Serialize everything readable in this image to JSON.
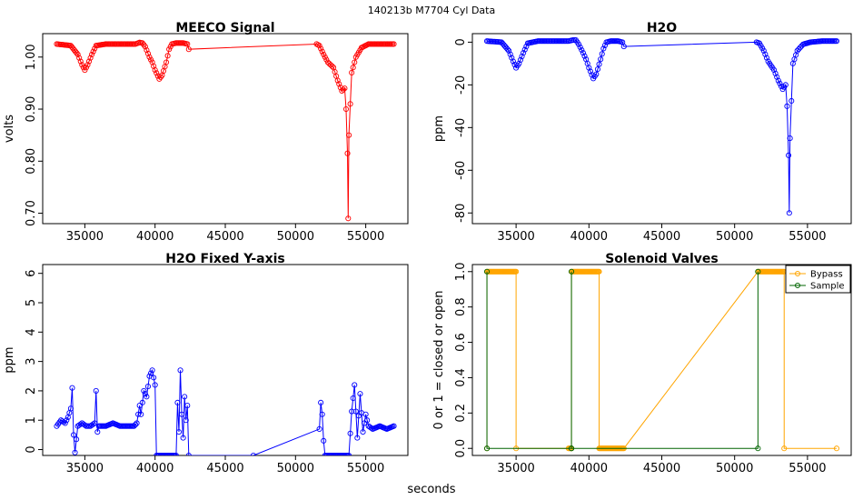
{
  "suptitle": "140213b    M7704   Cyl Data",
  "common_xlabel": "seconds",
  "colors": {
    "meeco": "#ff0000",
    "h2o": "#0000ff",
    "bypass": "#ffa500",
    "sample": "#006400"
  },
  "chart_data": [
    {
      "id": "meeco",
      "type": "line",
      "title": "MEECO Signal",
      "xlabel": "",
      "ylabel": "volts",
      "xlim": [
        32000,
        58000
      ],
      "ylim": [
        0.68,
        1.045
      ],
      "xticks": [
        35000,
        40000,
        45000,
        50000,
        55000
      ],
      "xtick_labels": [
        "35000",
        "40000",
        "45000",
        "50000",
        "55000"
      ],
      "yticks": [
        0.7,
        0.8,
        0.9,
        1.0
      ],
      "ytick_labels": [
        "0.70",
        "0.80",
        "0.90",
        "1.00"
      ],
      "series": [
        {
          "name": "MEECO",
          "color": "#ff0000",
          "x": [
            33000,
            34000,
            34500,
            34800,
            35000,
            35200,
            35500,
            35800,
            36500,
            38500,
            38600,
            38900,
            39100,
            39300,
            39600,
            39800,
            40000,
            40300,
            40500,
            40800,
            41000,
            41200,
            41500,
            42000,
            42300,
            42400,
            51500,
            51700,
            52000,
            52300,
            52700,
            53000,
            53300,
            53500,
            53600,
            53700,
            53750,
            53800,
            54000,
            54300,
            54700,
            55200,
            56000,
            57000
          ],
          "y": [
            1.025,
            1.022,
            1.005,
            0.985,
            0.975,
            0.985,
            1.005,
            1.022,
            1.025,
            1.025,
            1.025,
            1.028,
            1.027,
            1.02,
            1.0,
            0.99,
            0.975,
            0.958,
            0.965,
            0.99,
            1.015,
            1.025,
            1.027,
            1.027,
            1.025,
            1.015,
            1.025,
            1.022,
            1.005,
            0.99,
            0.98,
            0.955,
            0.935,
            0.94,
            0.9,
            0.815,
            0.69,
            0.85,
            0.97,
            1.0,
            1.018,
            1.025,
            1.025,
            1.025
          ]
        }
      ]
    },
    {
      "id": "h2o",
      "type": "line",
      "title": "H2O",
      "xlabel": "",
      "ylabel": "ppm",
      "xlim": [
        32000,
        58000
      ],
      "ylim": [
        -85,
        4
      ],
      "xticks": [
        35000,
        40000,
        45000,
        50000,
        55000
      ],
      "xtick_labels": [
        "35000",
        "40000",
        "45000",
        "50000",
        "55000"
      ],
      "yticks": [
        -80,
        -60,
        -40,
        -20,
        0
      ],
      "ytick_labels": [
        "-80",
        "-60",
        "-40",
        "-20",
        "0"
      ],
      "series": [
        {
          "name": "H2O",
          "color": "#0000ff",
          "x": [
            33000,
            34000,
            34500,
            34800,
            35000,
            35200,
            35500,
            35800,
            36500,
            38500,
            38600,
            38900,
            39100,
            39300,
            39600,
            39800,
            40000,
            40300,
            40500,
            40800,
            41000,
            41200,
            41500,
            42000,
            42300,
            42400,
            51500,
            51700,
            52000,
            52300,
            52700,
            53000,
            53300,
            53500,
            53600,
            53700,
            53750,
            53800,
            54000,
            54300,
            54700,
            55200,
            56000,
            57000
          ],
          "y": [
            0.5,
            0,
            -4,
            -9,
            -12,
            -10,
            -5,
            -0.5,
            0.5,
            0.5,
            0.5,
            1,
            1,
            -1,
            -5,
            -8,
            -12,
            -17,
            -15,
            -8,
            -3,
            0,
            0.5,
            0.5,
            0,
            -2,
            0,
            -0.5,
            -4,
            -9,
            -13,
            -18,
            -22,
            -20,
            -30,
            -53,
            -80,
            -45,
            -10,
            -4,
            -1,
            0,
            0.5,
            0.5
          ]
        }
      ]
    },
    {
      "id": "h2o_fixed",
      "type": "line",
      "title": "H2O Fixed Y-axis",
      "xlabel": "",
      "ylabel": "ppm",
      "xlim": [
        32000,
        58000
      ],
      "ylim": [
        -0.2,
        6.3
      ],
      "xticks": [
        35000,
        40000,
        45000,
        50000,
        55000
      ],
      "xtick_labels": [
        "35000",
        "40000",
        "45000",
        "50000",
        "55000"
      ],
      "yticks": [
        0,
        1,
        2,
        3,
        4,
        5,
        6
      ],
      "ytick_labels": [
        "0",
        "1",
        "2",
        "3",
        "4",
        "5",
        "6"
      ],
      "series": [
        {
          "name": "H2O",
          "color": "#0000ff",
          "x": [
            33000,
            33300,
            33600,
            33800,
            34000,
            34100,
            34200,
            34300,
            34500,
            34800,
            35100,
            35400,
            35700,
            35800,
            35900,
            36000,
            36500,
            37000,
            37500,
            38000,
            38500,
            38700,
            38900,
            39000,
            39200,
            39400,
            39600,
            39800,
            40000,
            40100,
            41500,
            41600,
            41700,
            41800,
            41900,
            42000,
            42100,
            42200,
            42300,
            42400,
            47000,
            51700,
            51800,
            51900,
            52000,
            52100,
            53800,
            54000,
            54200,
            54400,
            54600,
            54800,
            55000,
            55200,
            55500,
            56000,
            56500,
            57000
          ],
          "y": [
            0.8,
            1.0,
            0.9,
            1.1,
            1.4,
            2.1,
            0.5,
            -0.1,
            0.8,
            0.9,
            0.8,
            0.8,
            0.9,
            2.0,
            0.6,
            0.8,
            0.8,
            0.9,
            0.8,
            0.8,
            0.8,
            0.9,
            1.5,
            1.2,
            2.0,
            1.8,
            2.5,
            2.7,
            2.2,
            -0.2,
            -0.2,
            1.6,
            0.6,
            2.7,
            1.2,
            0.4,
            1.8,
            1.0,
            1.5,
            -0.2,
            -0.2,
            0.7,
            1.6,
            1.2,
            0.3,
            -0.2,
            -0.2,
            1.3,
            2.2,
            0.4,
            1.9,
            0.6,
            1.2,
            0.8,
            0.7,
            0.8,
            0.7,
            0.8
          ]
        }
      ]
    },
    {
      "id": "valves",
      "type": "line",
      "title": "Solenoid Valves",
      "xlabel": "",
      "ylabel": "0 or 1 = closed or open",
      "xlim": [
        32000,
        58000
      ],
      "ylim": [
        -0.04,
        1.04
      ],
      "xticks": [
        35000,
        40000,
        45000,
        50000,
        55000
      ],
      "xtick_labels": [
        "35000",
        "40000",
        "45000",
        "50000",
        "55000"
      ],
      "yticks": [
        0.0,
        0.2,
        0.4,
        0.6,
        0.8,
        1.0
      ],
      "ytick_labels": [
        "0.0",
        "0.2",
        "0.4",
        "0.6",
        "0.8",
        "1.0"
      ],
      "legend": {
        "position": "top-right",
        "entries": [
          "Bypass",
          "Sample"
        ]
      },
      "series": [
        {
          "name": "Bypass",
          "color": "#ffa500",
          "x": [
            33000,
            33000,
            35000,
            35000,
            38600,
            38800,
            38800,
            40700,
            40700,
            42400,
            51600,
            53400,
            53400,
            57000
          ],
          "y": [
            0,
            1,
            1,
            0,
            0,
            0,
            1,
            1,
            0,
            0,
            1,
            1,
            0,
            0
          ]
        },
        {
          "name": "Sample",
          "color": "#006400",
          "x": [
            33000,
            33000,
            38800,
            38800,
            38800,
            51600,
            51600
          ],
          "y": [
            1,
            0,
            0,
            1,
            0,
            0,
            1
          ]
        }
      ]
    }
  ]
}
